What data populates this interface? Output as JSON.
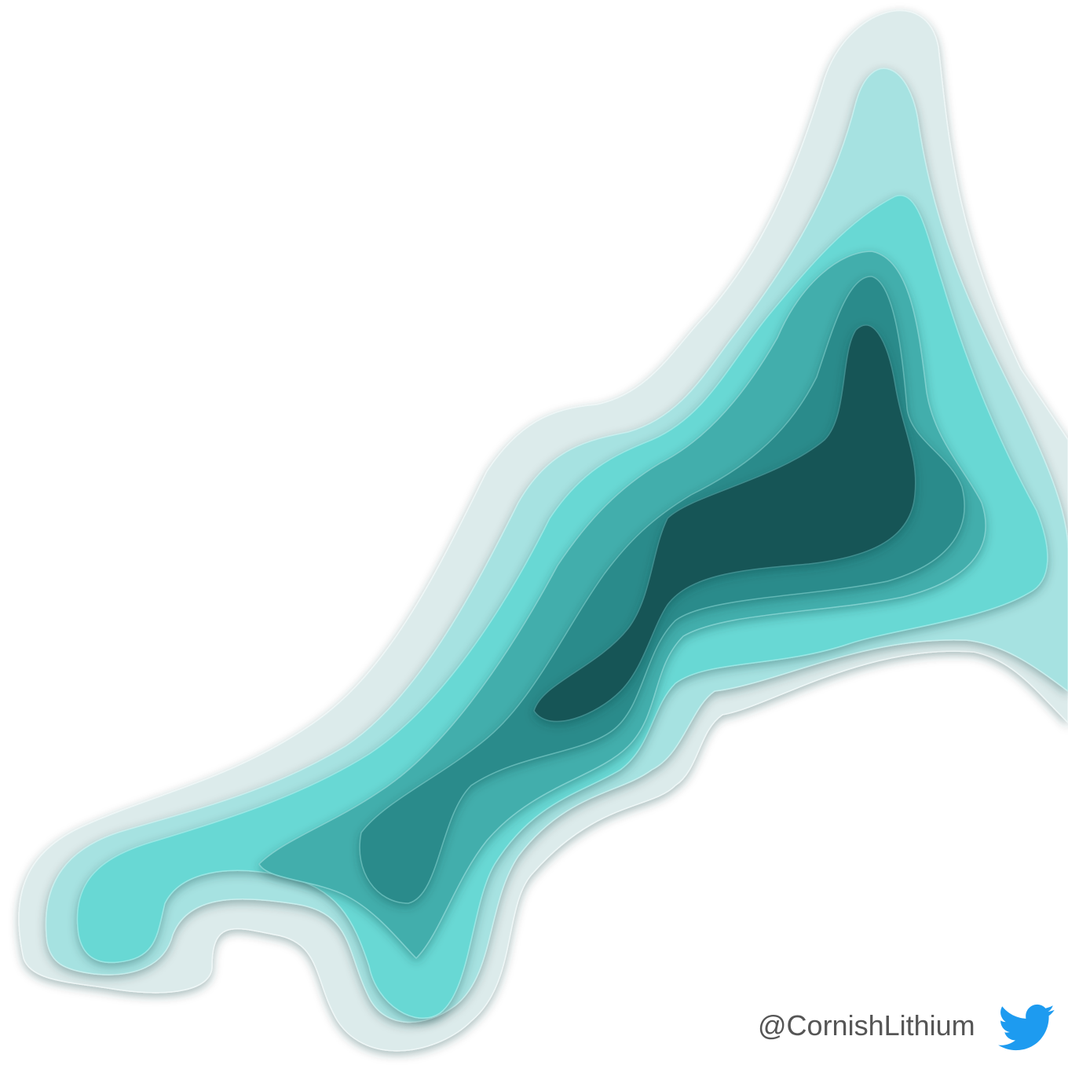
{
  "credit": {
    "handle": "@CornishLithium"
  }
}
